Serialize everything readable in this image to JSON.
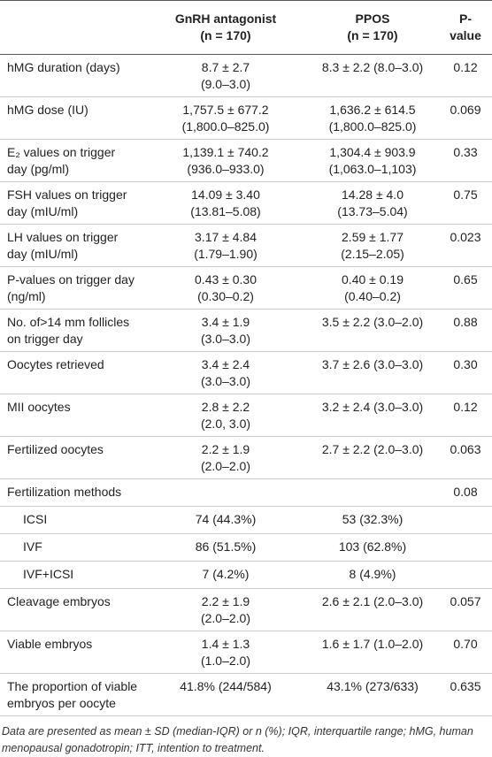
{
  "table": {
    "header": [
      "",
      {
        "title": "GnRH antagonist",
        "n": "(n = 170)"
      },
      {
        "title": "PPOS",
        "n": "(n = 170)"
      },
      "P-value"
    ],
    "rows": [
      {
        "label": "hMG duration (days)",
        "gnrh": [
          "8.7 ± 2.7",
          "(9.0–3.0)"
        ],
        "ppos": [
          "8.3 ± 2.2 (8.0–3.0)"
        ],
        "p": "0.12"
      },
      {
        "label": "hMG dose (IU)",
        "gnrh": [
          "1,757.5 ± 677.2",
          "(1,800.0–825.0)"
        ],
        "ppos": [
          "1,636.2 ± 614.5",
          "(1,800.0–825.0)"
        ],
        "p": "0.069"
      },
      {
        "label": "E₂ values on trigger day (pg/ml)",
        "gnrh": [
          "1,139.1 ± 740.2",
          "(936.0–933.0)"
        ],
        "ppos": [
          "1,304.4 ± 903.9",
          "(1,063.0–1,103)"
        ],
        "p": "0.33"
      },
      {
        "label": "FSH values on trigger day (mIU/ml)",
        "gnrh": [
          "14.09 ± 3.40",
          "(13.81–5.08)"
        ],
        "ppos": [
          "14.28 ± 4.0",
          "(13.73–5.04)"
        ],
        "p": "0.75"
      },
      {
        "label": "LH values on trigger day (mIU/ml)",
        "gnrh": [
          "3.17 ± 4.84",
          "(1.79–1.90)"
        ],
        "ppos": [
          "2.59 ± 1.77",
          "(2.15–2.05)"
        ],
        "p": "0.023"
      },
      {
        "label": "P-values on trigger day (ng/ml)",
        "gnrh": [
          "0.43 ± 0.30",
          "(0.30–0.2)"
        ],
        "ppos": [
          "0.40 ± 0.19",
          "(0.40–0.2)"
        ],
        "p": "0.65"
      },
      {
        "label": "No. of>14 mm follicles on trigger day",
        "gnrh": [
          "3.4 ± 1.9",
          "(3.0–3.0)"
        ],
        "ppos": [
          "3.5 ± 2.2 (3.0–2.0)"
        ],
        "p": "0.88"
      },
      {
        "label": "Oocytes retrieved",
        "gnrh": [
          "3.4 ± 2.4",
          "(3.0–3.0)"
        ],
        "ppos": [
          "3.7 ± 2.6 (3.0–3.0)"
        ],
        "p": "0.30"
      },
      {
        "label": "MII oocytes",
        "gnrh": [
          "2.8 ± 2.2",
          "(2.0, 3.0)"
        ],
        "ppos": [
          "3.2 ± 2.4 (3.0–3.0)"
        ],
        "p": "0.12"
      },
      {
        "label": "Fertilized oocytes",
        "gnrh": [
          "2.2 ± 1.9",
          "(2.0–2.0)"
        ],
        "ppos": [
          "2.7 ± 2.2 (2.0–3.0)"
        ],
        "p": "0.063"
      },
      {
        "label": "Fertilization methods",
        "p": "0.08"
      },
      {
        "label": "ICSI",
        "sub": true,
        "gnrh": [
          "74 (44.3%)"
        ],
        "ppos": [
          "53 (32.3%)"
        ]
      },
      {
        "label": "IVF",
        "sub": true,
        "gnrh": [
          "86 (51.5%)"
        ],
        "ppos": [
          "103 (62.8%)"
        ]
      },
      {
        "label": "IVF+ICSI",
        "sub": true,
        "gnrh": [
          "7 (4.2%)"
        ],
        "ppos": [
          "8 (4.9%)"
        ]
      },
      {
        "label": "Cleavage embryos",
        "gnrh": [
          "2.2 ± 1.9",
          "(2.0–2.0)"
        ],
        "ppos": [
          "2.6 ± 2.1 (2.0–3.0)"
        ],
        "p": "0.057"
      },
      {
        "label": "Viable embryos",
        "gnrh": [
          "1.4 ± 1.3",
          "(1.0–2.0)"
        ],
        "ppos": [
          "1.6 ± 1.7 (1.0–2.0)"
        ],
        "p": "0.70"
      },
      {
        "label": "The proportion of viable embryos per oocyte",
        "gnrh": [
          "41.8% (244/584)"
        ],
        "ppos": [
          "43.1% (273/633)"
        ],
        "p": "0.635"
      }
    ],
    "footnote": "Data are presented as mean ± SD (median-IQR) or n (%); IQR, interquartile range; hMG, human menopausal gonadotropin; ITT, intention to treatment."
  }
}
